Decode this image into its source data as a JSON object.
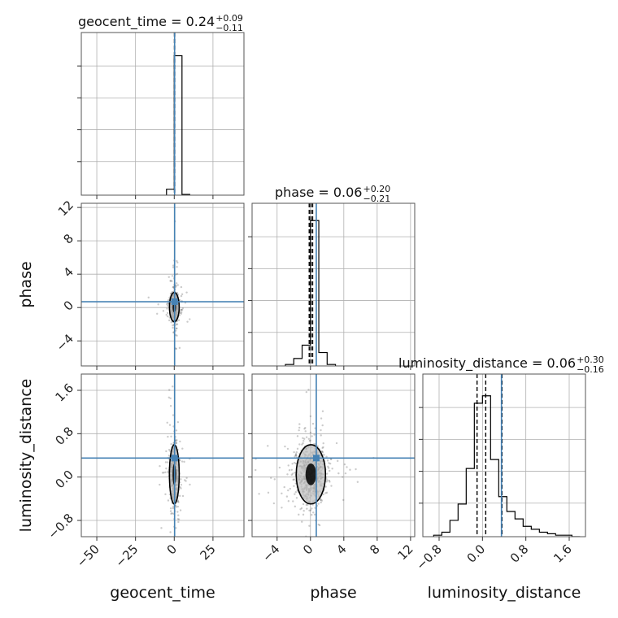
{
  "chart_data": {
    "type": "corner",
    "parameters": [
      "geocent_time",
      "phase",
      "luminosity_distance"
    ],
    "truths": {
      "geocent_time": 0.24,
      "phase": 0.7,
      "luminosity_distance": 0.35
    },
    "titles": [
      {
        "param": "geocent_time",
        "text": "geocent_time = 0.24",
        "sup": "+0.09",
        "sub": "−0.11"
      },
      {
        "param": "phase",
        "text": "phase = 0.06",
        "sup": "+0.20",
        "sub": "−0.21"
      },
      {
        "param": "luminosity_distance",
        "text": "luminosity_distance = 0.06",
        "sup": "+0.30",
        "sub": "−0.16"
      }
    ],
    "axes": {
      "geocent_time": {
        "range": [
          -60,
          45
        ],
        "ticks": [
          -50,
          -25,
          0,
          25
        ],
        "ticklabels": [
          "−50",
          "−25",
          "0",
          "25"
        ]
      },
      "phase": {
        "range": [
          -7,
          12.5
        ],
        "ticks": [
          -4,
          0,
          4,
          8,
          12
        ],
        "ticklabels": [
          "−4",
          "0",
          "4",
          "8",
          "12"
        ]
      },
      "luminosity_distance": {
        "range": [
          -1.1,
          1.9
        ],
        "ticks": [
          -0.8,
          0.0,
          0.8,
          1.6
        ],
        "ticklabels": [
          "−0.8",
          "0.0",
          "0.8",
          "1.6"
        ]
      }
    },
    "quantile_lines": {
      "geocent_time": [
        0.13,
        0.24,
        0.33
      ],
      "phase": [
        -0.15,
        0.06,
        0.26
      ],
      "luminosity_distance": [
        -0.1,
        0.06,
        0.36
      ]
    },
    "histograms": {
      "geocent_time": {
        "edges": [
          -5,
          0,
          5,
          10
        ],
        "counts": [
          0.04,
          0.94,
          0.005
        ]
      },
      "phase": {
        "edges": [
          -3,
          -2,
          -1,
          0,
          1,
          2,
          3
        ],
        "counts": [
          0.01,
          0.05,
          0.14,
          0.98,
          0.09,
          0.01
        ]
      },
      "luminosity_distance": {
        "edges": [
          -0.9,
          -0.75,
          -0.6,
          -0.45,
          -0.3,
          -0.15,
          0.0,
          0.15,
          0.3,
          0.45,
          0.6,
          0.75,
          0.9,
          1.05,
          1.2,
          1.35,
          1.5,
          1.65,
          1.8
        ],
        "counts": [
          0.01,
          0.03,
          0.11,
          0.22,
          0.46,
          0.9,
          0.95,
          0.52,
          0.27,
          0.17,
          0.12,
          0.07,
          0.05,
          0.03,
          0.02,
          0.01,
          0.01,
          0.0
        ]
      }
    },
    "colors": {
      "truth": "#4682b4",
      "contour": "#000000",
      "grid": "#b0b0b0",
      "points": "#6a6a6a"
    },
    "grid": true
  }
}
